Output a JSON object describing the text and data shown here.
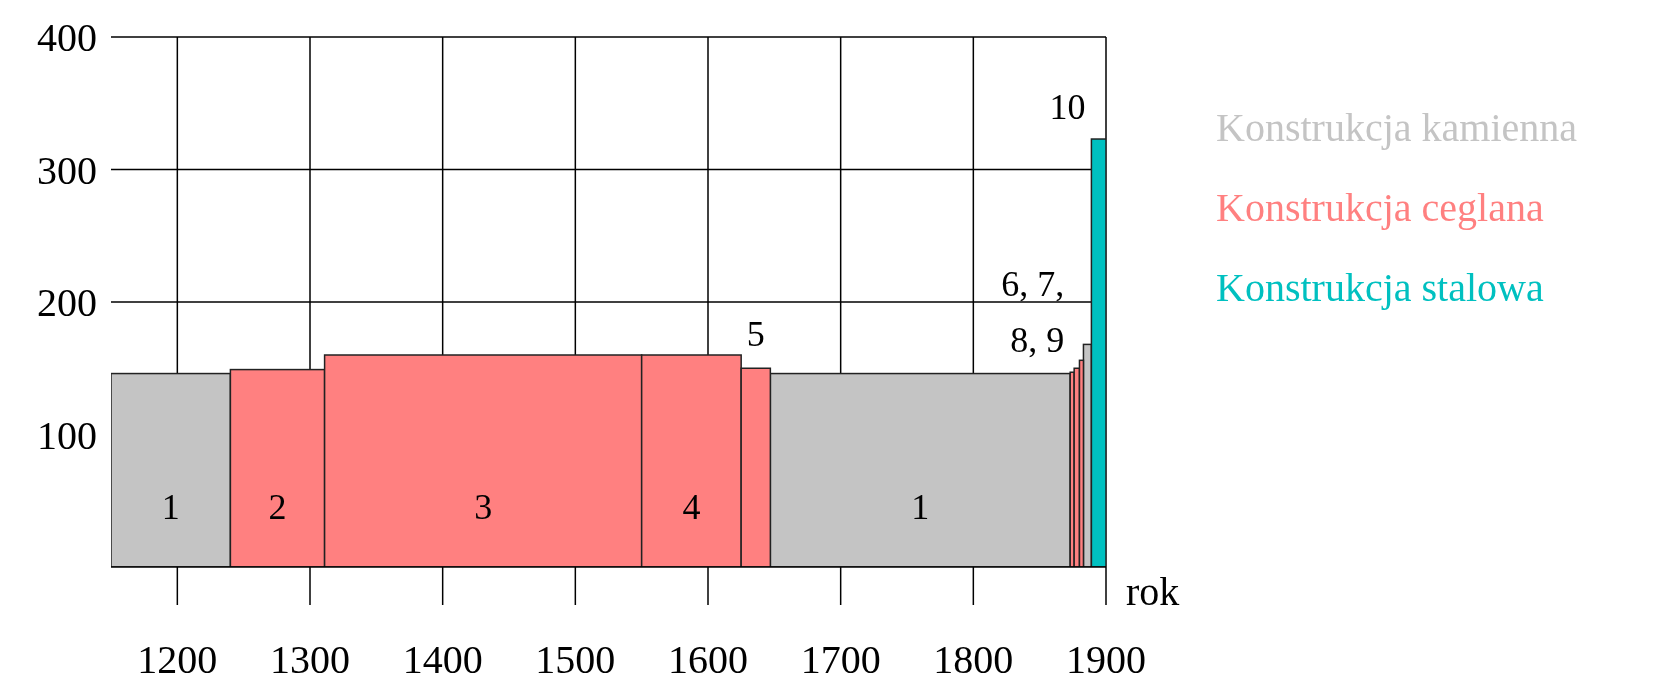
{
  "chart_data": {
    "type": "histogram",
    "xlabel": "rok",
    "bins": [
      1150,
      1240,
      1311,
      1550,
      1625,
      1647,
      1873,
      1876,
      1880,
      1883,
      1889,
      1900
    ],
    "series": [
      {
        "name": "Konstrukcja kamienna",
        "color": "#c4c4c4",
        "values": [
          146,
          null,
          null,
          null,
          null,
          146,
          null,
          null,
          null,
          168,
          null
        ]
      },
      {
        "name": "Konstrukcja ceglana",
        "color": "#ff8080",
        "values": [
          null,
          149,
          160,
          160,
          150,
          null,
          147,
          150,
          156,
          null,
          null
        ]
      },
      {
        "name": "Konstrukcja stalowa",
        "color": "#00c0c0",
        "values": [
          null,
          null,
          null,
          null,
          null,
          null,
          null,
          null,
          null,
          null,
          323
        ]
      }
    ],
    "xlim": [
      1150,
      1900
    ],
    "xticks": [
      1200,
      1300,
      1400,
      1500,
      1600,
      1700,
      1800,
      1900
    ],
    "ylim": [
      0,
      400
    ],
    "yticks": [
      100,
      200,
      300,
      400
    ],
    "grid": true,
    "legend": "right",
    "annotations": [
      "1",
      "2",
      "3",
      "4",
      "1",
      {
        "text": "5",
        "x": 1636,
        "y": 150
      },
      {
        "text": "6, 7,\n8, 9",
        "x": 1874.5,
        "y": 147
      },
      {
        "text": "10",
        "x": 1894.5,
        "y": 323
      }
    ]
  }
}
